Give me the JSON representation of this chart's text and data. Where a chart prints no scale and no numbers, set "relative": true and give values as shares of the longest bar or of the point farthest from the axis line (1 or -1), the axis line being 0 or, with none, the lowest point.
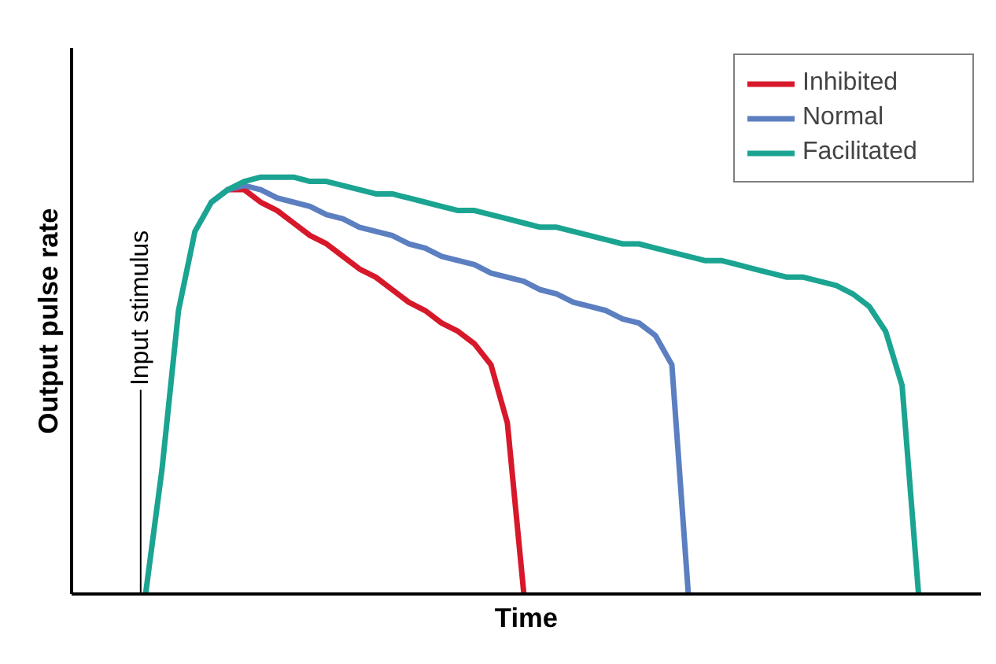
{
  "chart_data": {
    "type": "line",
    "relative": true,
    "xlabel": "Time",
    "ylabel": "Output pulse rate",
    "annotations": [
      "Input stimulus"
    ],
    "legend": "top right",
    "tick_labels": false,
    "categories": [
      null,
      null,
      null,
      null,
      null,
      null,
      null,
      null,
      null,
      null,
      null,
      null,
      null,
      null,
      null,
      null,
      null,
      null,
      null,
      null,
      null,
      null,
      null,
      null,
      null,
      null,
      null,
      null,
      null,
      null,
      null,
      null,
      null,
      null,
      null,
      null,
      null,
      null,
      null,
      null,
      null,
      null,
      null,
      null,
      null,
      null,
      null,
      null
    ],
    "series": [
      {
        "name": "Inhibited",
        "color": "#d7182a",
        "values": [
          null,
          null,
          null,
          null,
          null,
          0.97,
          0.97,
          0.94,
          0.92,
          0.89,
          0.86,
          0.84,
          0.81,
          0.78,
          0.76,
          0.73,
          0.7,
          0.68,
          0.65,
          0.63,
          0.6,
          0.55,
          0.41,
          0,
          null,
          null,
          null,
          null,
          null,
          null,
          null,
          null,
          null,
          null,
          null,
          null,
          null,
          null,
          null,
          null,
          null,
          null,
          null,
          null,
          null,
          null,
          null,
          null
        ]
      },
      {
        "name": "Normal",
        "color": "#5b7fc0",
        "values": [
          null,
          null,
          null,
          null,
          0.94,
          0.97,
          0.98,
          0.97,
          0.95,
          0.94,
          0.93,
          0.91,
          0.9,
          0.88,
          0.87,
          0.86,
          0.84,
          0.83,
          0.81,
          0.8,
          0.79,
          0.77,
          0.76,
          0.75,
          0.73,
          0.72,
          0.7,
          0.69,
          0.68,
          0.66,
          0.65,
          0.62,
          0.55,
          0,
          null,
          null,
          null,
          null,
          null,
          null,
          null,
          null,
          null,
          null,
          null,
          null,
          null,
          null
        ]
      },
      {
        "name": "Facilitated",
        "color": "#1aa491",
        "values": [
          0,
          0.3,
          0.68,
          0.87,
          0.94,
          0.97,
          0.99,
          1.0,
          1.0,
          1.0,
          0.99,
          0.99,
          0.98,
          0.97,
          0.96,
          0.96,
          0.95,
          0.94,
          0.93,
          0.92,
          0.92,
          0.91,
          0.9,
          0.89,
          0.88,
          0.88,
          0.87,
          0.86,
          0.85,
          0.84,
          0.84,
          0.83,
          0.82,
          0.81,
          0.8,
          0.8,
          0.79,
          0.78,
          0.77,
          0.76,
          0.76,
          0.75,
          0.74,
          0.72,
          0.69,
          0.63,
          0.5,
          0
        ]
      }
    ]
  }
}
